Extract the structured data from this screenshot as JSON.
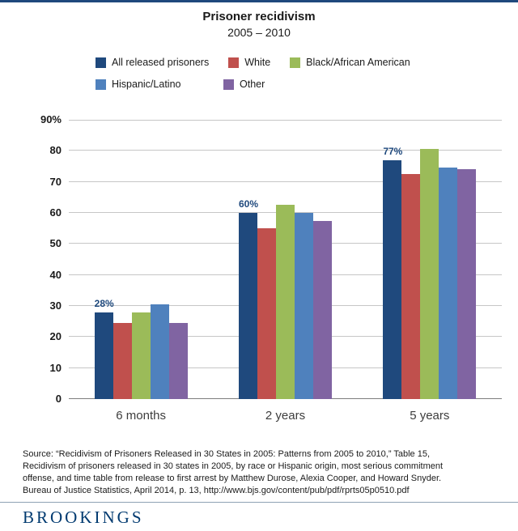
{
  "header": {
    "title": "Prisoner recidivism",
    "subtitle": "2005 – 2010"
  },
  "chart_data": {
    "type": "bar",
    "title": "Prisoner recidivism",
    "subtitle": "2005 – 2010",
    "categories": [
      "6 months",
      "2 years",
      "5 years"
    ],
    "series": [
      {
        "name": "All released prisoners",
        "color": "#1F497D",
        "values": [
          28,
          60,
          77
        ]
      },
      {
        "name": "White",
        "color": "#C0504D",
        "values": [
          24.5,
          55,
          72.5
        ]
      },
      {
        "name": "Black/African American",
        "color": "#9BBB59",
        "values": [
          28,
          62.5,
          80.5
        ]
      },
      {
        "name": "Hispanic/Latino",
        "color": "#4F81BD",
        "values": [
          30.5,
          60,
          74.5
        ]
      },
      {
        "name": "Other",
        "color": "#8064A2",
        "values": [
          24.5,
          57.5,
          74
        ]
      }
    ],
    "annotations": [
      {
        "category_index": 0,
        "series_index": 0,
        "text": "28%"
      },
      {
        "category_index": 1,
        "series_index": 0,
        "text": "60%"
      },
      {
        "category_index": 2,
        "series_index": 0,
        "text": "77%"
      }
    ],
    "y_axis": {
      "min": 0,
      "max": 90,
      "step": 10,
      "top_label": "90%",
      "tick_labels": [
        "0",
        "10",
        "20",
        "30",
        "40",
        "50",
        "60",
        "70",
        "80",
        "90%"
      ]
    },
    "xlabel": "",
    "ylabel": "",
    "ylim": [
      0,
      90
    ],
    "grid": true,
    "legend_position": "top"
  },
  "footer": {
    "source_lines": [
      "Source: “Recidivism of Prisoners Released in 30 States in 2005: Patterns from 2005 to 2010,” Table 15,",
      "Recidivism of prisoners released in 30 states in 2005, by race or Hispanic origin, most serious commitment",
      "offense, and time table from release to first arrest by Matthew Durose, Alexia Cooper, and Howard Snyder.",
      "Bureau of Justice Statistics, April 2014, p. 13, http://www.bjs.gov/content/pub/pdf/rprts05p0510.pdf"
    ],
    "brand": "BROOKINGS"
  },
  "colors": {
    "accent_rule": "#1F497D",
    "brand_navy": "#003A70",
    "annotation": "#1F497D",
    "gridline": "#c6c6c6",
    "baseline": "#7f7f7f"
  }
}
